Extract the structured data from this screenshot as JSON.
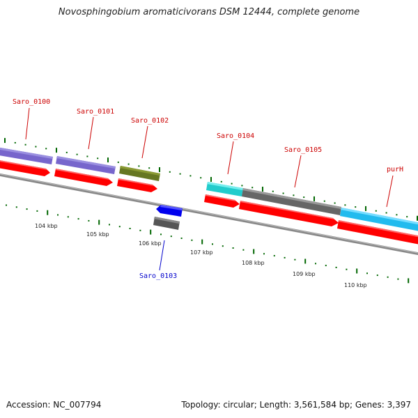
{
  "title": "Novosphingobium aromaticivorans DSM 12444, complete genome",
  "footer": {
    "accession": "Accession: NC_007794",
    "summary": "Topology: circular; Length: 3,561,584 bp; Genes: 3,397"
  },
  "colors": {
    "backbone": "#888888",
    "cds": "#ff0000",
    "tick": "#006600",
    "label_forward": "#cc0000",
    "label_reverse": "#0000cc"
  },
  "kbp_labels": [
    "104 kbp",
    "105 kbp",
    "106 kbp",
    "107 kbp",
    "108 kbp",
    "109 kbp",
    "110 kbp"
  ],
  "genes": [
    {
      "label": "",
      "color": "#7766cc"
    },
    {
      "label": "Saro_0100",
      "color": "#7766cc"
    },
    {
      "label": "Saro_0101",
      "color": "#7766cc"
    },
    {
      "label": "Saro_0102",
      "color": "#667722"
    },
    {
      "label": "Saro_0103",
      "color": "#555555"
    },
    {
      "label": "Saro_0104",
      "color": "#22cccc"
    },
    {
      "label": "Saro_0105",
      "color": "#666666"
    },
    {
      "label": "purH",
      "color": "#22bbee"
    }
  ]
}
